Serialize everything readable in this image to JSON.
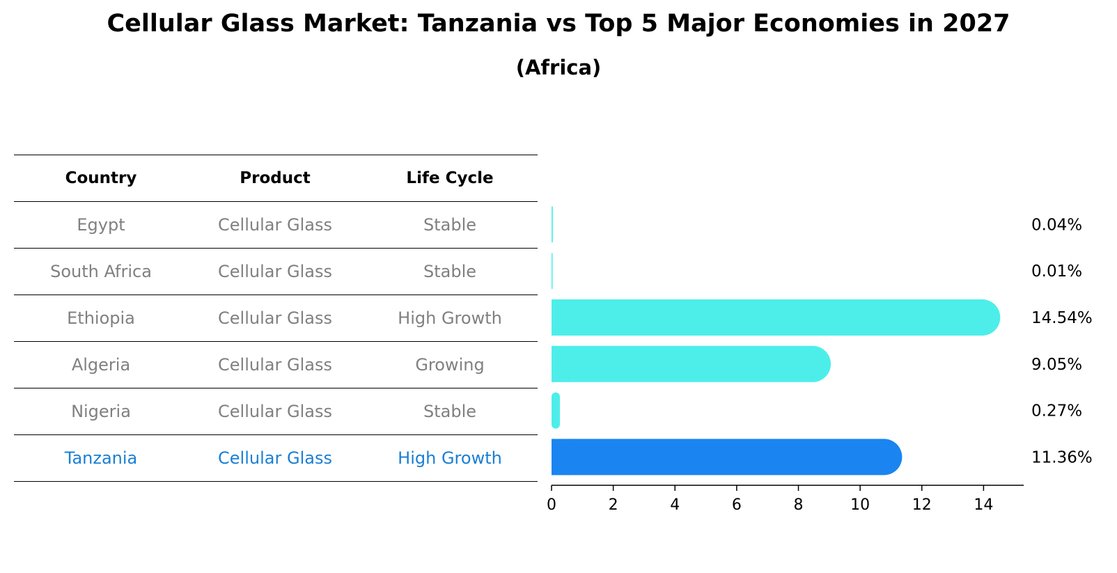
{
  "title": "Cellular Glass Market: Tanzania vs Top 5 Major Economies in 2027",
  "subtitle": "(Africa)",
  "table": {
    "headers": [
      "Country",
      "Product",
      "Life Cycle"
    ],
    "rows": [
      [
        "Egypt",
        "Cellular Glass",
        "Stable"
      ],
      [
        "South Africa",
        "Cellular Glass",
        "Stable"
      ],
      [
        "Ethiopia",
        "Cellular Glass",
        "High Growth"
      ],
      [
        "Algeria",
        "Cellular Glass",
        "Growing"
      ],
      [
        "Nigeria",
        "Cellular Glass",
        "Stable"
      ],
      [
        "Tanzania",
        "Cellular Glass",
        "High Growth"
      ]
    ],
    "highlight_row": 5
  },
  "colors": {
    "bar": "#4deeea",
    "highlight_bar": "#1a85f0",
    "highlight_text": "#1a7fd4",
    "row_text": "#808080"
  },
  "chart_data": {
    "type": "bar",
    "orientation": "horizontal",
    "categories": [
      "Egypt",
      "South Africa",
      "Ethiopia",
      "Algeria",
      "Nigeria",
      "Tanzania"
    ],
    "values": [
      0.04,
      0.01,
      14.54,
      9.05,
      0.27,
      11.36
    ],
    "value_labels": [
      "0.04%",
      "0.01%",
      "14.54%",
      "9.05%",
      "0.27%",
      "11.36%"
    ],
    "highlight": "Tanzania",
    "xlim": [
      0,
      15.3
    ],
    "xticks": [
      0,
      2,
      4,
      6,
      8,
      10,
      12,
      14
    ],
    "xlabel": "",
    "ylabel": "",
    "grid": false
  }
}
